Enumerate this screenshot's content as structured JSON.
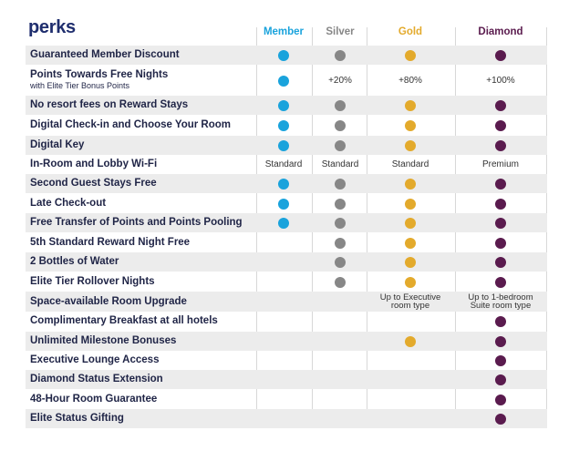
{
  "title": "perks",
  "columns": [
    {
      "name": "Member",
      "color": "#1aa3dc"
    },
    {
      "name": "Silver",
      "color": "#878787"
    },
    {
      "name": "Gold",
      "color": "#e3aa2c"
    },
    {
      "name": "Diamond",
      "color": "#5a1b4e"
    }
  ],
  "rows": [
    {
      "label": "Guaranteed Member Discount",
      "cells": [
        "dot",
        "dot",
        "dot",
        "dot"
      ]
    },
    {
      "label": "Points Towards Free Nights",
      "sublabel": "with Elite Tier Bonus Points",
      "cells": [
        "dot",
        "+20%",
        "+80%",
        "+100%"
      ]
    },
    {
      "label": "No resort fees on Reward Stays",
      "cells": [
        "dot",
        "dot",
        "dot",
        "dot"
      ]
    },
    {
      "label": "Digital Check-in and Choose Your Room",
      "cells": [
        "dot",
        "dot",
        "dot",
        "dot"
      ]
    },
    {
      "label": "Digital Key",
      "cells": [
        "dot",
        "dot",
        "dot",
        "dot"
      ]
    },
    {
      "label": "In-Room and Lobby Wi-Fi",
      "cells": [
        "Standard",
        "Standard",
        "Standard",
        "Premium"
      ]
    },
    {
      "label": "Second Guest Stays Free",
      "cells": [
        "dot",
        "dot",
        "dot",
        "dot"
      ]
    },
    {
      "label": "Late Check-out",
      "cells": [
        "dot",
        "dot",
        "dot",
        "dot"
      ]
    },
    {
      "label": "Free Transfer of Points and Points Pooling",
      "cells": [
        "dot",
        "dot",
        "dot",
        "dot"
      ]
    },
    {
      "label": "5th Standard Reward Night Free",
      "cells": [
        "",
        "dot",
        "dot",
        "dot"
      ]
    },
    {
      "label": "2 Bottles of Water",
      "cells": [
        "",
        "dot",
        "dot",
        "dot"
      ]
    },
    {
      "label": "Elite Tier Rollover Nights",
      "cells": [
        "",
        "dot",
        "dot",
        "dot"
      ]
    },
    {
      "label": "Space-available Room Upgrade",
      "cells": [
        "",
        "",
        "Up to Executive\nroom type",
        "Up to 1-bedroom\nSuite room type"
      ]
    },
    {
      "label": "Complimentary Breakfast at all hotels",
      "cells": [
        "",
        "",
        "",
        "dot"
      ]
    },
    {
      "label": "Unlimited Milestone Bonuses",
      "cells": [
        "",
        "",
        "dot",
        "dot"
      ]
    },
    {
      "label": "Executive Lounge Access",
      "cells": [
        "",
        "",
        "",
        "dot"
      ]
    },
    {
      "label": "Diamond Status Extension",
      "cells": [
        "",
        "",
        "",
        "dot"
      ]
    },
    {
      "label": "48-Hour Room Guarantee",
      "cells": [
        "",
        "",
        "",
        "dot"
      ]
    },
    {
      "label": "Elite Status Gifting",
      "cells": [
        "",
        "",
        "",
        "dot"
      ]
    }
  ]
}
